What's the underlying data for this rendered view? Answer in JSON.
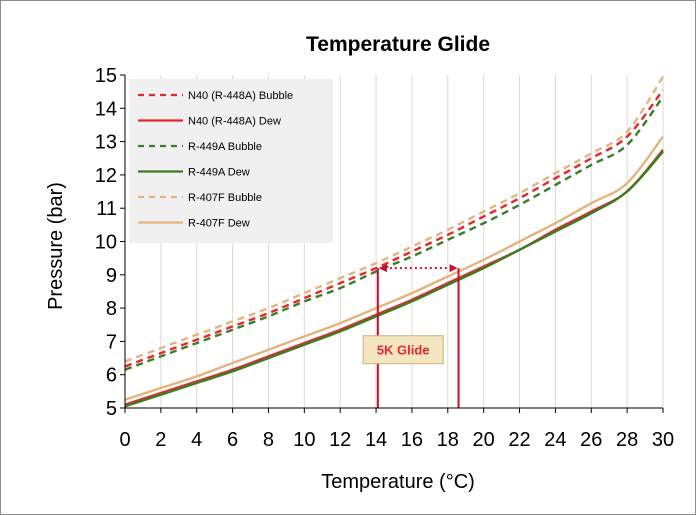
{
  "chart_data": {
    "type": "line",
    "title": "Temperature Glide",
    "xlabel": "Temperature (°C)",
    "ylabel": "Pressure (bar)",
    "xlim": [
      0,
      30
    ],
    "ylim": [
      5,
      15
    ],
    "x_ticks": [
      0,
      2,
      4,
      6,
      8,
      10,
      12,
      14,
      16,
      18,
      20,
      22,
      24,
      26,
      28,
      30
    ],
    "y_ticks": [
      5,
      6,
      7,
      8,
      9,
      10,
      11,
      12,
      13,
      14,
      15
    ],
    "grid": "vertical",
    "legend_position": "top-left",
    "x": [
      0,
      2,
      4,
      6,
      8,
      10,
      12,
      14,
      16,
      18,
      20,
      22,
      24,
      26,
      28,
      30
    ],
    "series": [
      {
        "name": "N40 (R-448A) Bubble",
        "color": "#e8262b",
        "dash": "dashed",
        "values": [
          6.25,
          6.65,
          7.05,
          7.45,
          7.85,
          8.3,
          8.75,
          9.2,
          9.7,
          10.2,
          10.75,
          11.3,
          11.9,
          12.5,
          13.15,
          14.55
        ]
      },
      {
        "name": "N40 (R-448A) Dew",
        "color": "#e8262b",
        "dash": "solid",
        "values": [
          5.1,
          5.45,
          5.8,
          6.15,
          6.55,
          6.95,
          7.35,
          7.8,
          8.25,
          8.75,
          9.25,
          9.75,
          10.35,
          10.9,
          11.5,
          12.75
        ]
      },
      {
        "name": "R-449A Bubble",
        "color": "#3a7d23",
        "dash": "dashed",
        "values": [
          6.15,
          6.55,
          6.95,
          7.35,
          7.75,
          8.2,
          8.6,
          9.1,
          9.55,
          10.05,
          10.55,
          11.1,
          11.7,
          12.3,
          12.9,
          14.35
        ]
      },
      {
        "name": "R-449A Dew",
        "color": "#3a7d23",
        "dash": "solid",
        "values": [
          5.05,
          5.4,
          5.75,
          6.1,
          6.5,
          6.9,
          7.3,
          7.75,
          8.2,
          8.7,
          9.2,
          9.75,
          10.3,
          10.85,
          11.5,
          12.7
        ]
      },
      {
        "name": "R-407F Bubble",
        "color": "#e3b47c",
        "dash": "dashed",
        "values": [
          6.4,
          6.8,
          7.2,
          7.6,
          8.0,
          8.45,
          8.9,
          9.35,
          9.85,
          10.35,
          10.9,
          11.45,
          12.05,
          12.65,
          13.3,
          14.95
        ]
      },
      {
        "name": "R-407F Dew",
        "color": "#e3b47c",
        "dash": "solid",
        "values": [
          5.25,
          5.6,
          5.95,
          6.35,
          6.75,
          7.15,
          7.55,
          8.0,
          8.45,
          8.95,
          9.45,
          10.0,
          10.55,
          11.15,
          11.75,
          13.15
        ]
      }
    ],
    "annotation": {
      "label": "5K Glide",
      "x_start": 14.1,
      "x_end": 18.6,
      "arrow_y": 9.2,
      "color": "#c8102e"
    }
  }
}
